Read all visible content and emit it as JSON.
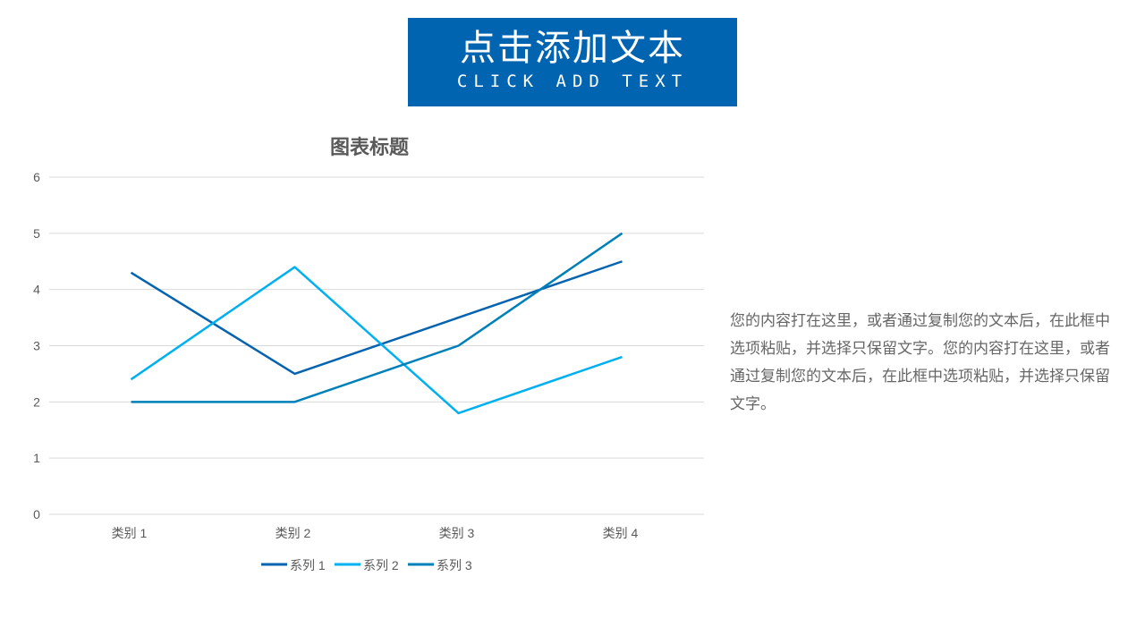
{
  "banner": {
    "title": "点击添加文本",
    "subtitle": "CLICK ADD TEXT",
    "color": "#0064b0"
  },
  "body_text": "您的内容打在这里，或者通过复制您的文本后，在此框中选项粘贴，并选择只保留文字。您的内容打在这里，或者通过复制您的文本后，在此框中选项粘贴，并选择只保留文字。",
  "chart_data": {
    "type": "line",
    "title": "图表标题",
    "categories": [
      "类别 1",
      "类别 2",
      "类别 3",
      "类别 4"
    ],
    "series": [
      {
        "name": "系列 1",
        "values": [
          4.3,
          2.5,
          3.5,
          4.5
        ],
        "color": "#0563b0"
      },
      {
        "name": "系列 2",
        "values": [
          2.4,
          4.4,
          1.8,
          2.8
        ],
        "color": "#00b0f0"
      },
      {
        "name": "系列 3",
        "values": [
          2,
          2,
          3,
          5
        ],
        "color": "#0080b8"
      }
    ],
    "ylim": [
      0,
      6
    ],
    "yticks": [
      0,
      1,
      2,
      3,
      4,
      5,
      6
    ],
    "grid": true,
    "legend": "bottom"
  }
}
